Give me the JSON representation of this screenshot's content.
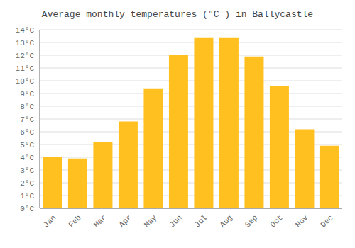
{
  "chart_data": {
    "type": "bar",
    "title": "Average monthly temperatures (°C ) in Ballycastle",
    "categories": [
      "Jan",
      "Feb",
      "Mar",
      "Apr",
      "May",
      "Jun",
      "Jul",
      "Aug",
      "Sep",
      "Oct",
      "Nov",
      "Dec"
    ],
    "values": [
      4.0,
      3.9,
      5.2,
      6.8,
      9.4,
      12.0,
      13.4,
      13.4,
      11.9,
      9.6,
      6.2,
      4.9
    ],
    "color": "#FFC020",
    "ylim": [
      0,
      14
    ],
    "yticks": [
      {
        "value": 0,
        "label": "0°C"
      },
      {
        "value": 1,
        "label": "1°C"
      },
      {
        "value": 2,
        "label": "2°C"
      },
      {
        "value": 3,
        "label": "3°C"
      },
      {
        "value": 4,
        "label": "4°C"
      },
      {
        "value": 5,
        "label": "5°C"
      },
      {
        "value": 6,
        "label": "6°C"
      },
      {
        "value": 7,
        "label": "7°C"
      },
      {
        "value": 8,
        "label": "8°C"
      },
      {
        "value": 9,
        "label": "9°C"
      },
      {
        "value": 10,
        "label": "10°C"
      },
      {
        "value": 11,
        "label": "11°C"
      },
      {
        "value": 12,
        "label": "12°C"
      },
      {
        "value": 13,
        "label": "13°C"
      },
      {
        "value": 14,
        "label": "14°C"
      }
    ],
    "grid": true
  }
}
